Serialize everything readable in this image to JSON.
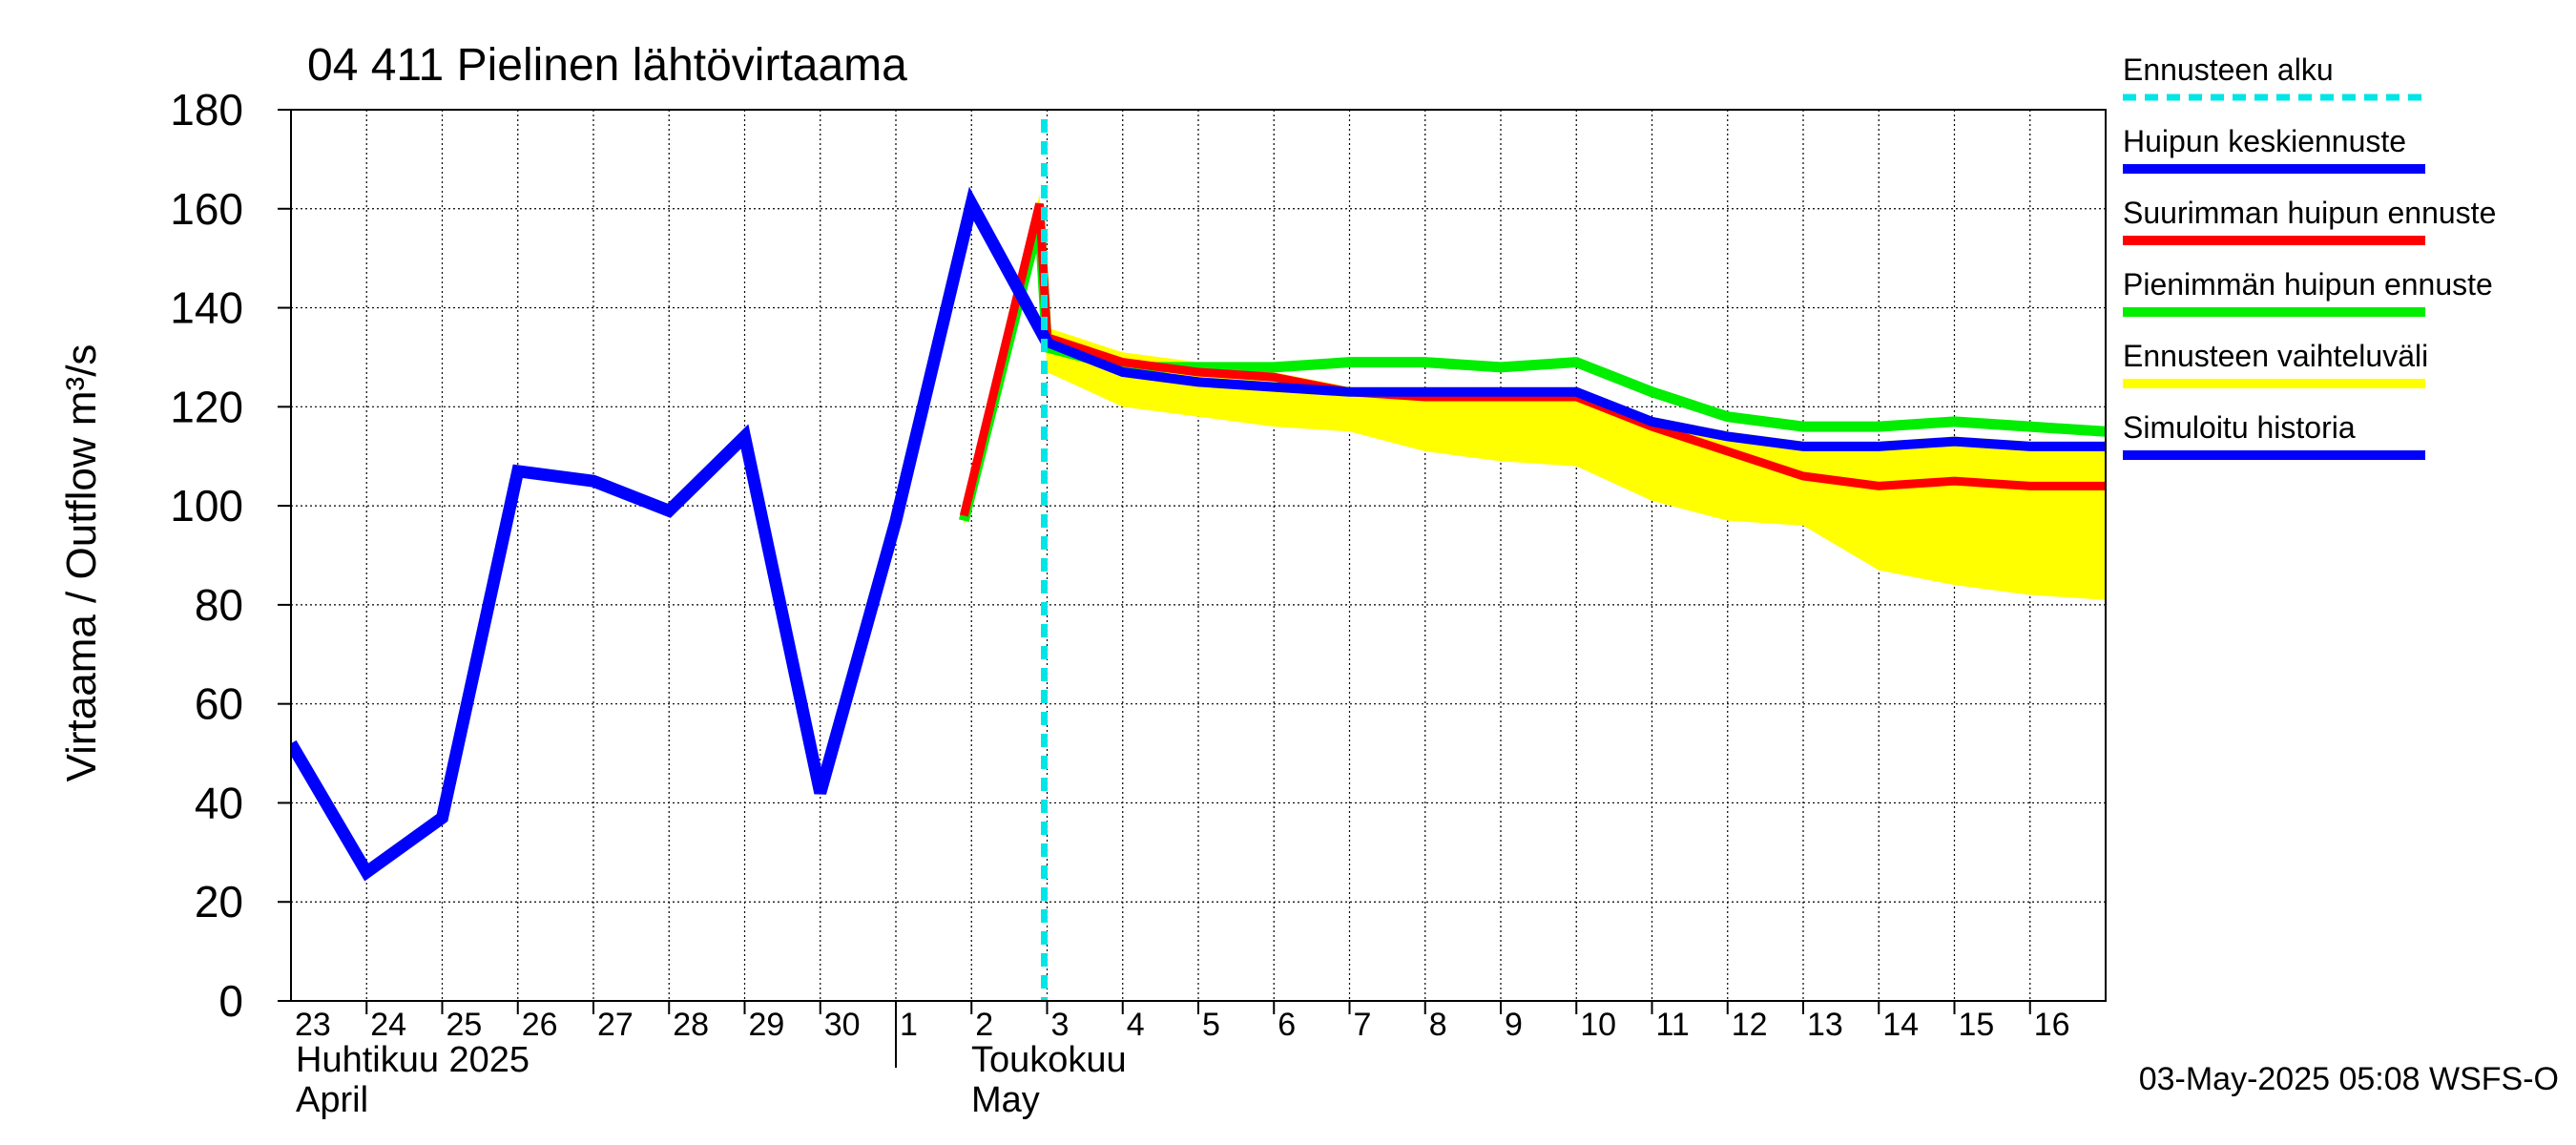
{
  "chart_data": {
    "type": "line",
    "title": "04 411 Pielinen lähtövirtaama",
    "ylabel": "Virtaama / Outflow    m³/s",
    "ylim": [
      0,
      180
    ],
    "yticks": [
      0,
      20,
      40,
      60,
      80,
      100,
      120,
      140,
      160,
      180
    ],
    "xlim": [
      0,
      24
    ],
    "x_tick_labels": [
      "23",
      "24",
      "25",
      "26",
      "27",
      "28",
      "29",
      "30",
      "1",
      "2",
      "3",
      "4",
      "5",
      "6",
      "7",
      "8",
      "9",
      "10",
      "11",
      "12",
      "13",
      "14",
      "15",
      "16"
    ],
    "month_labels": [
      {
        "line1": "Huhtikuu  2025",
        "line2": "April",
        "day_index": 0
      },
      {
        "line1": "Toukokuu",
        "line2": "May",
        "day_index": 9
      }
    ],
    "forecast_start": 10,
    "series": [
      {
        "name": "Ennusteen vaihteluväli",
        "kind": "band",
        "color": "#ffff00",
        "x": [
          8.9,
          9.9,
          10,
          11,
          12,
          13,
          14,
          15,
          16,
          17,
          18,
          19,
          20,
          21,
          22,
          23,
          24
        ],
        "upper": [
          100,
          163,
          136,
          131,
          129,
          127,
          124,
          123,
          123,
          123,
          118,
          115,
          113,
          113,
          114,
          113,
          113
        ],
        "lower": [
          96,
          157,
          127,
          120,
          118,
          116,
          115,
          111,
          109,
          108,
          101,
          97,
          96,
          87,
          84,
          82,
          81
        ]
      },
      {
        "name": "Pienimmän huipun ennuste",
        "color": "#00ee00",
        "x": [
          8.9,
          9.9,
          10,
          11,
          12,
          13,
          14,
          15,
          16,
          17,
          18,
          19,
          20,
          21,
          22,
          23,
          24
        ],
        "values": [
          97,
          158,
          132,
          128,
          128,
          128,
          129,
          129,
          128,
          129,
          123,
          118,
          116,
          116,
          117,
          116,
          115
        ]
      },
      {
        "name": "Suurimman huipun ennuste",
        "color": "#ff0000",
        "x": [
          8.9,
          9.9,
          10,
          11,
          12,
          13,
          14,
          15,
          16,
          17,
          18,
          19,
          20,
          21,
          22,
          23,
          24
        ],
        "values": [
          98,
          161,
          134,
          129,
          127,
          126,
          123,
          122,
          122,
          122,
          116,
          111,
          106,
          104,
          105,
          104,
          104
        ]
      },
      {
        "name": "Huipun keskiennuste",
        "color": "#0000ff",
        "x": [
          10,
          11,
          12,
          13,
          14,
          15,
          16,
          17,
          18,
          19,
          20,
          21,
          22,
          23,
          24
        ],
        "values": [
          133,
          127,
          125,
          124,
          123,
          123,
          123,
          123,
          117,
          114,
          112,
          112,
          113,
          112,
          112
        ]
      },
      {
        "name": "Simuloitu historia",
        "color": "#0000ff",
        "x": [
          0,
          1,
          2,
          3,
          4,
          5,
          6,
          7,
          8,
          9,
          10
        ],
        "values": [
          52,
          26,
          37,
          107,
          105,
          99,
          114,
          42,
          97,
          161,
          133
        ]
      }
    ],
    "legend": {
      "placement": "right",
      "entries": [
        {
          "label": "Ennusteen alku",
          "color": "#00e5e5",
          "style": "dashed"
        },
        {
          "label": "Huipun keskiennuste",
          "color": "#0000ff",
          "style": "solid"
        },
        {
          "label": "Suurimman huipun ennuste",
          "color": "#ff0000",
          "style": "solid"
        },
        {
          "label": "Pienimmän huipun ennuste",
          "color": "#00ee00",
          "style": "solid"
        },
        {
          "label": "Ennusteen vaihteluväli",
          "color": "#ffff00",
          "style": "solid"
        },
        {
          "label": "Simuloitu historia",
          "color": "#0000ff",
          "style": "solid"
        }
      ]
    },
    "footer": "03-May-2025 05:08 WSFS-O"
  }
}
